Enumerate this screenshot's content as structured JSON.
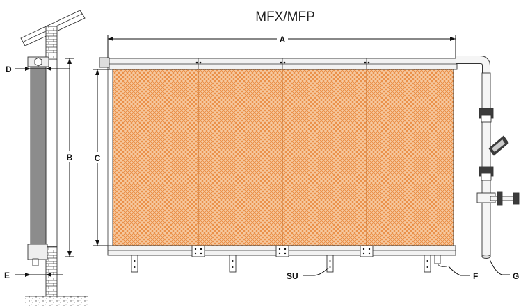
{
  "title": "MFX/MFP",
  "labels": {
    "A": "A",
    "B": "B",
    "C": "C",
    "D": "D",
    "E": "E",
    "F": "F",
    "G": "G",
    "SU": "SU"
  },
  "colors": {
    "pad": "#f6c9a0",
    "pad_mesh": "#e8883c",
    "frame": "#f2f2f2",
    "frame_stroke": "#333333",
    "side_pad": "#8c8c8c",
    "valve": "#3c3c3c"
  }
}
